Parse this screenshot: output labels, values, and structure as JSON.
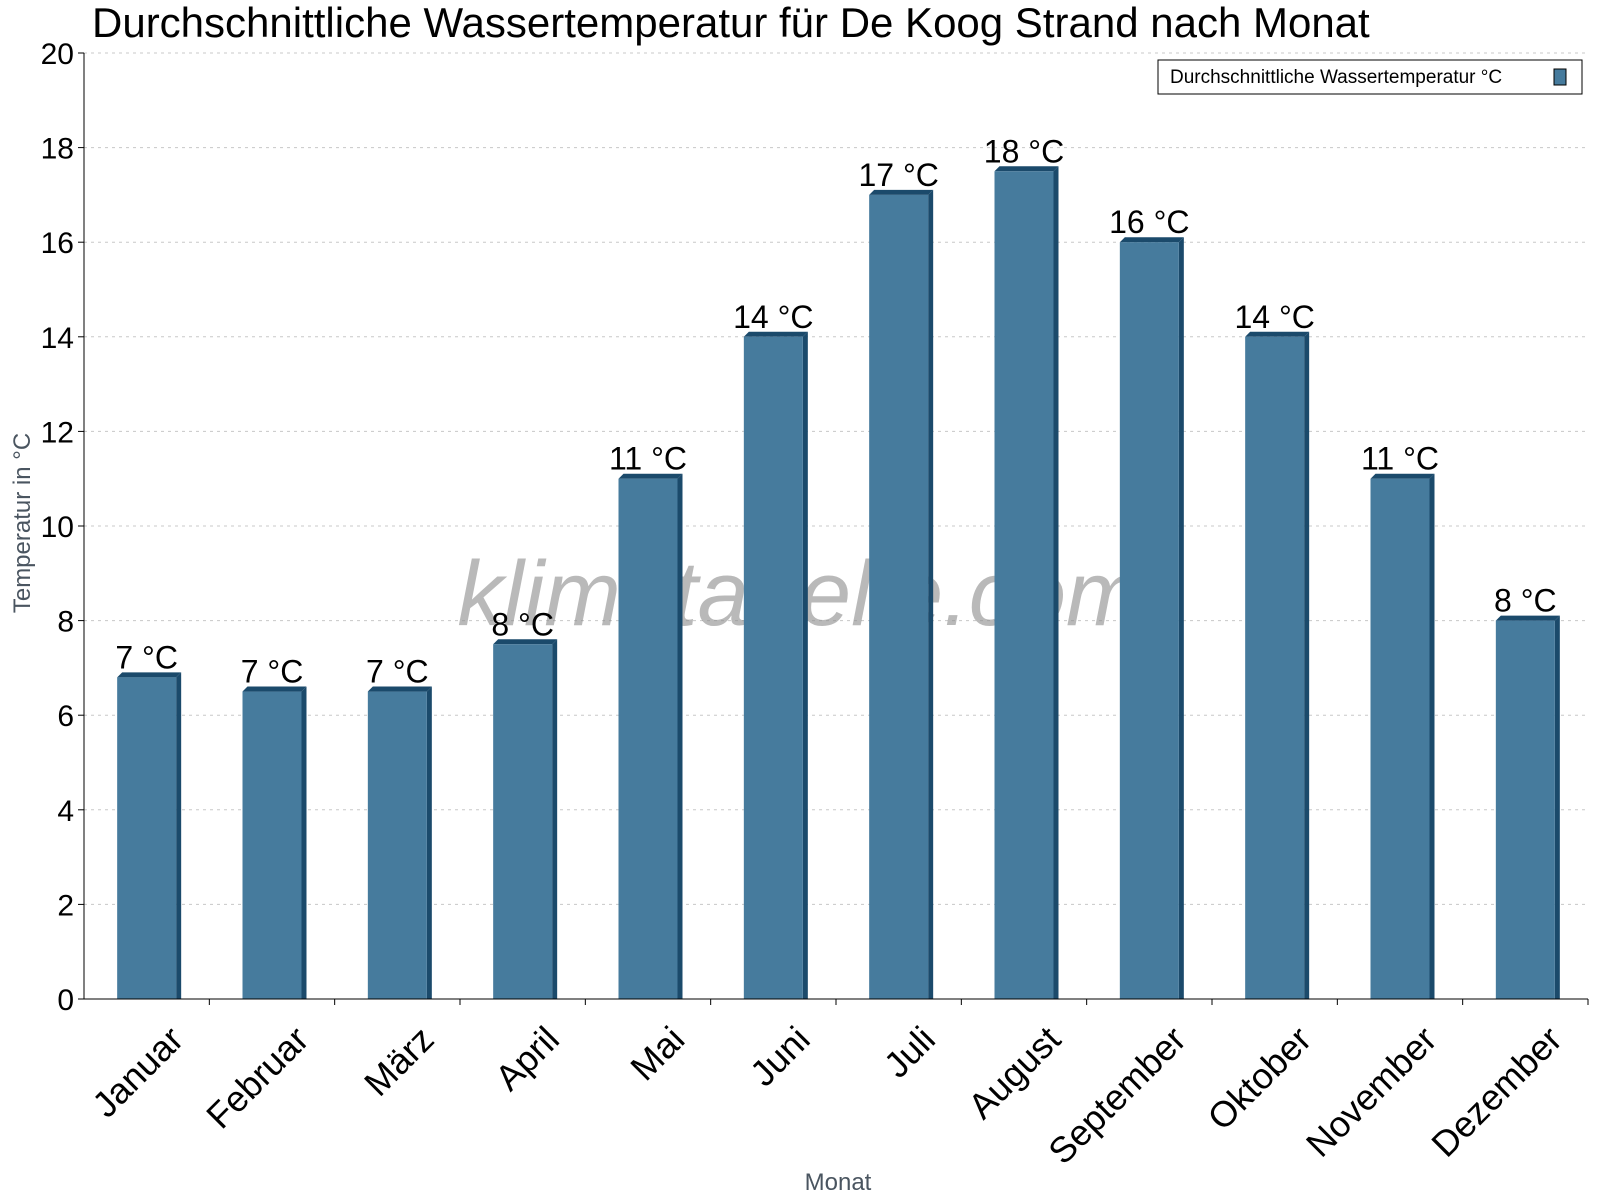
{
  "chart_data": {
    "type": "bar",
    "title": "Durchschnittliche Wassertemperatur für De Koog Strand nach Monat",
    "xlabel": "Monat",
    "ylabel": "Temperatur in °C",
    "ylim": [
      0,
      20
    ],
    "yticks": [
      0,
      2,
      4,
      6,
      8,
      10,
      12,
      14,
      16,
      18,
      20
    ],
    "grid": true,
    "legend_position": "top-right",
    "watermark": "klimatabelle.com",
    "categories": [
      "Januar",
      "Februar",
      "März",
      "April",
      "Mai",
      "Juni",
      "Juli",
      "August",
      "September",
      "Oktober",
      "November",
      "Dezember"
    ],
    "series": [
      {
        "name": "Durchschnittliche Wassertemperatur °C",
        "color": "#467b9d",
        "values": [
          6.8,
          6.5,
          6.5,
          7.5,
          11,
          14,
          17,
          17.5,
          16,
          14,
          11,
          8
        ],
        "labels": [
          "7 °C",
          "7 °C",
          "7 °C",
          "8 °C",
          "11 °C",
          "14 °C",
          "17 °C",
          "18 °C",
          "16 °C",
          "14 °C",
          "11 °C",
          "8 °C"
        ]
      }
    ]
  }
}
